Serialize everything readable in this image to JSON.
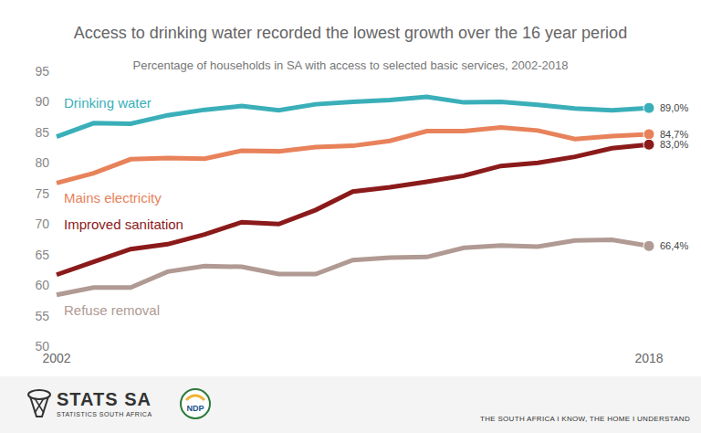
{
  "chart_data": {
    "type": "line",
    "title": "Access to drinking water recorded the lowest growth over the 16 year period",
    "subtitle": "Percentage of households in SA with access to selected basic services, 2002-2018",
    "categories": [
      "2002",
      null,
      null,
      null,
      null,
      null,
      null,
      null,
      null,
      null,
      null,
      null,
      null,
      null,
      null,
      null,
      "2018"
    ],
    "ylim": [
      50,
      95
    ],
    "yticks": [
      50,
      55,
      60,
      65,
      70,
      75,
      80,
      85,
      90,
      95
    ],
    "grid": false,
    "series": [
      {
        "name": "Drinking water",
        "color": "#3aafb9",
        "marker": "end",
        "values": [
          84.3,
          86.5,
          86.4,
          87.8,
          88.7,
          89.3,
          88.6,
          89.6,
          90.0,
          90.3,
          90.8,
          89.9,
          90.0,
          89.5,
          88.9,
          88.6,
          89.0
        ],
        "value_labels": [
          null,
          null,
          null,
          null,
          null,
          null,
          null,
          null,
          null,
          null,
          null,
          null,
          null,
          null,
          null,
          null,
          "89,0%"
        ]
      },
      {
        "name": "Mains electricity",
        "color": "#e8825a",
        "marker": "end",
        "values": [
          76.7,
          78.3,
          80.6,
          80.8,
          80.7,
          82.0,
          81.9,
          82.6,
          82.8,
          83.6,
          85.2,
          85.2,
          85.8,
          85.3,
          83.9,
          84.4,
          84.7
        ],
        "value_labels": [
          null,
          null,
          null,
          null,
          null,
          null,
          null,
          null,
          null,
          null,
          null,
          null,
          null,
          null,
          null,
          null,
          "84,7%"
        ]
      },
      {
        "name": "Improved sanitation",
        "color": "#8b1a1a",
        "marker": "end",
        "values": [
          61.7,
          63.8,
          65.9,
          66.7,
          68.3,
          70.3,
          70.0,
          72.3,
          75.3,
          76.0,
          76.9,
          77.9,
          79.5,
          80.0,
          81.0,
          82.4,
          83.0
        ],
        "value_labels": [
          null,
          null,
          null,
          null,
          null,
          null,
          null,
          null,
          null,
          null,
          null,
          null,
          null,
          null,
          null,
          null,
          "83,0%"
        ]
      },
      {
        "name": "Refuse removal",
        "color": "#b09a93",
        "marker": "end",
        "values": [
          58.4,
          59.6,
          59.6,
          62.2,
          63.1,
          63.0,
          61.8,
          61.8,
          64.1,
          64.5,
          64.6,
          66.1,
          66.5,
          66.3,
          67.3,
          67.4,
          66.4
        ],
        "value_labels": [
          null,
          null,
          null,
          null,
          null,
          null,
          null,
          null,
          null,
          null,
          null,
          null,
          null,
          null,
          null,
          null,
          "66,4%"
        ]
      }
    ]
  },
  "footer": {
    "logo_text": "STATS SA",
    "logo_subtitle": "STATISTICS SOUTH AFRICA",
    "ndp": "NDP",
    "slogan": "THE SOUTH AFRICA I KNOW, THE HOME I UNDERSTAND"
  }
}
